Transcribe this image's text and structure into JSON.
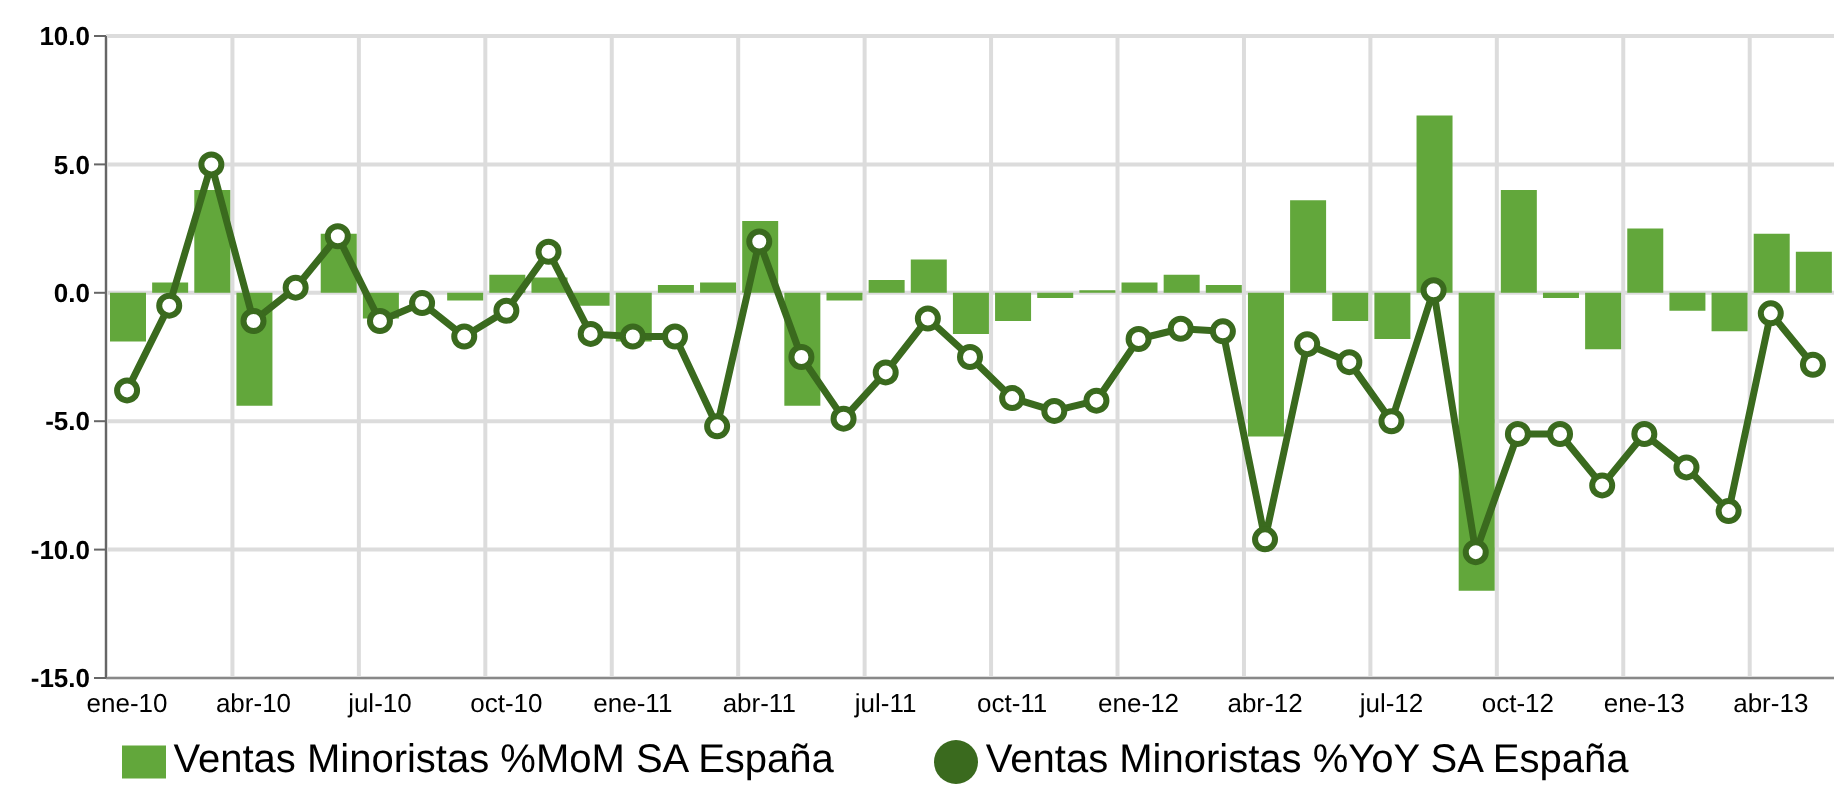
{
  "chart_data": {
    "type": "bar",
    "categories": [
      "ene-10",
      null,
      null,
      "abr-10",
      null,
      null,
      "jul-10",
      null,
      null,
      "oct-10",
      null,
      null,
      "ene-11",
      null,
      null,
      "abr-11",
      null,
      null,
      "jul-11",
      null,
      null,
      "oct-11",
      null,
      null,
      "ene-12",
      null,
      null,
      "abr-12",
      null,
      null,
      "jul-12",
      null,
      null,
      "oct-12",
      null,
      null,
      "ene-13",
      null,
      null,
      "abr-13",
      null
    ],
    "series": [
      {
        "name": "Ventas Minoristas %MoM SA España",
        "color": "#62a73b",
        "values": [
          -1.9,
          0.4,
          4.0,
          -4.4,
          null,
          2.3,
          -1.0,
          null,
          -0.3,
          0.7,
          0.6,
          -0.5,
          -1.9,
          0.3,
          0.4,
          2.8,
          -4.4,
          -0.3,
          0.5,
          1.3,
          -1.6,
          -1.1,
          -0.2,
          0.1,
          0.4,
          0.7,
          0.3,
          -5.6,
          3.6,
          -1.1,
          -1.8,
          6.9,
          -11.6,
          4.0,
          -0.2,
          -2.2,
          2.5,
          -0.7,
          -1.5,
          2.3,
          1.6
        ]
      },
      {
        "name": "Ventas Minoristas %YoY SA España",
        "type": "line",
        "color": "#3a6a1e",
        "values": [
          -3.8,
          -0.5,
          5.0,
          -1.1,
          0.2,
          2.2,
          -1.1,
          -0.4,
          -1.7,
          -0.7,
          1.6,
          -1.6,
          -1.7,
          -1.7,
          -5.2,
          2.0,
          -2.5,
          -4.9,
          -3.1,
          -1.0,
          -2.5,
          -4.1,
          -4.6,
          -4.2,
          -1.8,
          -1.4,
          -1.5,
          -9.6,
          -2.0,
          -2.7,
          -5.0,
          0.1,
          -10.1,
          -5.5,
          -5.5,
          -7.5,
          -5.5,
          -6.8,
          -8.5,
          -0.8,
          -2.8
        ]
      }
    ],
    "ylim": [
      -15,
      10
    ],
    "yticks": [
      {
        "value": -15,
        "label": "-15.0"
      },
      {
        "value": -10,
        "label": "-10.0"
      },
      {
        "value": -5,
        "label": "-5.0"
      },
      {
        "value": 0,
        "label": "0.0"
      },
      {
        "value": 5,
        "label": "5.0"
      },
      {
        "value": 10,
        "label": "10.0"
      }
    ],
    "grid": true,
    "legend": "bottom",
    "marker": "circle",
    "line_style": "solid"
  }
}
